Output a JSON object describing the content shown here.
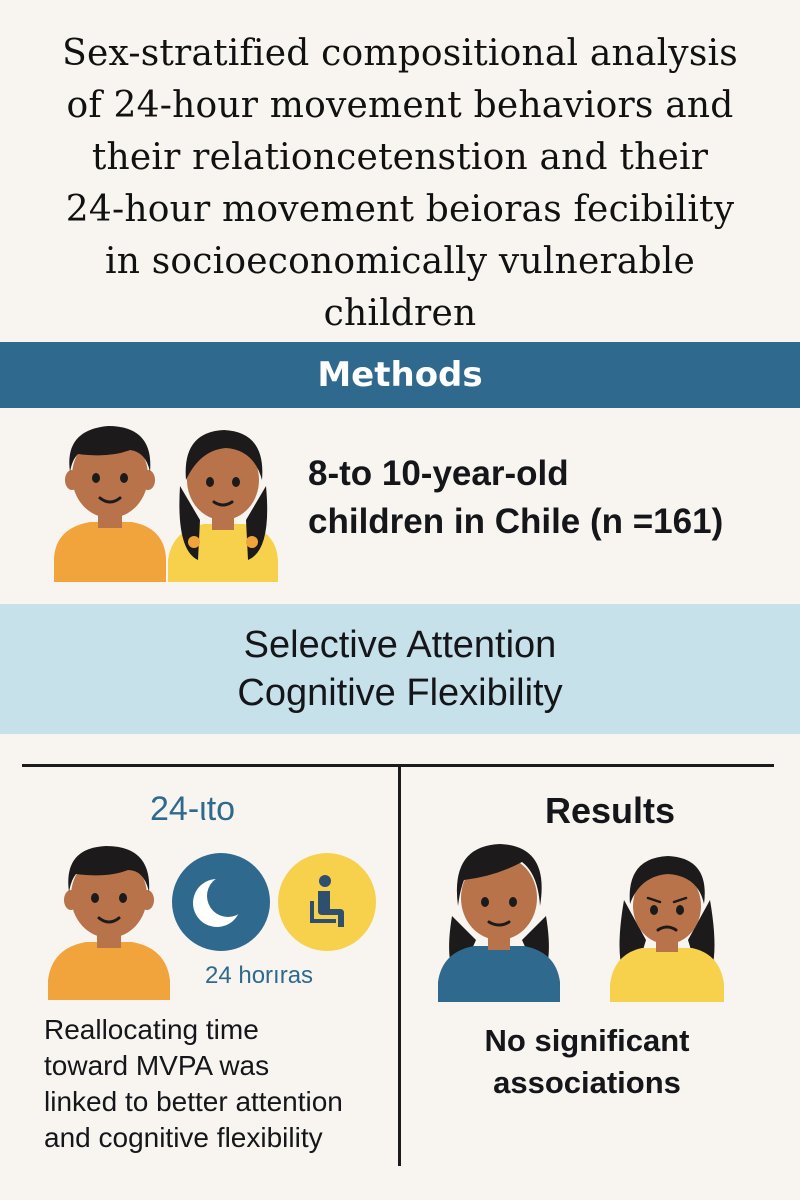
{
  "title": {
    "line1": "Sex-stratified compositional analysis",
    "line2": "of 24-hour movement behaviors and",
    "line3": "their relationcetenstion and their",
    "line4": "24-hour movement beioras fecibility",
    "line5": "in socioeconomically vulnerable",
    "line6": "children"
  },
  "methods": {
    "heading": "Methods",
    "sample_line1": "8-to 10-year-old",
    "sample_line2": "children in Chile (n =161)"
  },
  "measures": {
    "line1": "Selective Attention",
    "line2": "Cognitive Flexibility"
  },
  "left_panel": {
    "heading": "24-ιto",
    "icon_label": "24 horıras",
    "icons": [
      "boy-icon",
      "moon-icon",
      "seated-person-icon"
    ],
    "finding_line1": "Reallocating time",
    "finding_line2": "toward MVPA was",
    "finding_line3": "linked to better attention",
    "finding_line4": "and cognitive flexibility"
  },
  "right_panel": {
    "heading": "Results",
    "icons": [
      "girl-icon",
      "sad-girl-icon"
    ],
    "finding_line1": "No significant",
    "finding_line2": "associations"
  },
  "colors": {
    "background": "#f8f5f1",
    "methods_band": "#2f6a8e",
    "measures_band": "#c7e1ea",
    "accent_blue": "#2f6a8e",
    "accent_yellow": "#f7d14c",
    "shirt_orange": "#f2a43c",
    "skin": "#b8734a",
    "hair": "#1c1a1a"
  }
}
